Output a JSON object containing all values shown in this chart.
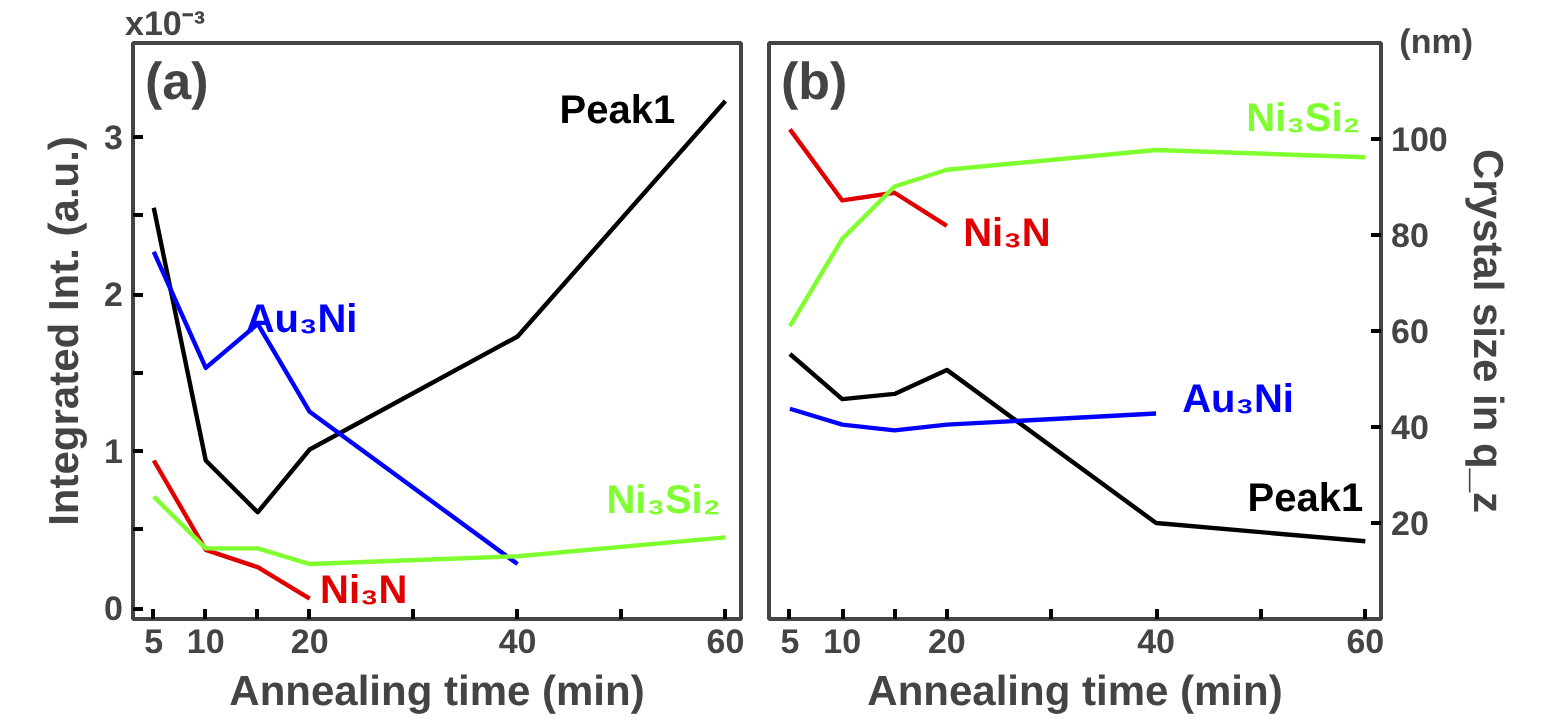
{
  "chart_data": [
    {
      "type": "line",
      "title": "(a)",
      "xlabel": "Annealing time (min)",
      "ylabel": "Integrated Int. (a.u.)",
      "grid": false,
      "x": [
        5,
        10,
        15,
        20,
        40,
        60
      ],
      "xlim": [
        3,
        61.5
      ],
      "xticks": [
        5,
        10,
        {
          "value": 15,
          "label": null
        },
        20,
        {
          "value": 30,
          "label": null
        },
        40,
        {
          "value": 50,
          "label": null
        },
        60
      ],
      "ylim": [
        -0.07,
        3.6
      ],
      "yticks": [
        0,
        {
          "value": 0.5,
          "label": null
        },
        1,
        {
          "value": 1.5,
          "label": null
        },
        2,
        {
          "value": 2.5,
          "label": null
        },
        3
      ],
      "series": [
        {
          "name": "Peak1",
          "color": "#000000",
          "values": [
            2.55,
            0.94,
            0.61,
            1.01,
            1.73,
            3.23
          ]
        },
        {
          "name": "Au₃Ni",
          "color": "#0000ff",
          "values": [
            2.27,
            1.53,
            1.81,
            1.25,
            0.28,
            null
          ]
        },
        {
          "name": "Ni₃N",
          "color": "#e00000",
          "values": [
            0.94,
            0.37,
            0.26,
            0.06,
            null,
            null
          ]
        },
        {
          "name": "Ni₃Si₂",
          "color": "#80ff30",
          "values": [
            0.71,
            0.38,
            0.38,
            0.28,
            0.33,
            0.45
          ]
        }
      ],
      "annotations": [
        "x10⁻³"
      ]
    },
    {
      "type": "line",
      "title": "(b)",
      "xlabel": "Annealing time (min)",
      "y2label": "Crystal size in q_z",
      "grid": false,
      "x": [
        5,
        10,
        15,
        20,
        40,
        60
      ],
      "xlim": [
        3,
        61.5
      ],
      "xticks": [
        5,
        10,
        {
          "value": 15,
          "label": null
        },
        20,
        {
          "value": 30,
          "label": null
        },
        40,
        {
          "value": 50,
          "label": null
        },
        60
      ],
      "y2lim": [
        0,
        120
      ],
      "y2ticks": [
        20,
        40,
        60,
        80,
        100
      ],
      "series": [
        {
          "name": "Peak1",
          "color": "#000000",
          "axis": "y2",
          "values": [
            55.2,
            45.8,
            46.9,
            51.9,
            20,
            16.2
          ]
        },
        {
          "name": "Au₃Ni",
          "color": "#0000ff",
          "axis": "y2",
          "values": [
            43.8,
            40.5,
            39.3,
            40.5,
            42.8,
            null
          ]
        },
        {
          "name": "Ni₃N",
          "color": "#e00000",
          "axis": "y2",
          "values": [
            102,
            87.2,
            88.8,
            81.9,
            null,
            null
          ]
        },
        {
          "name": "Ni₃Si₂",
          "color": "#80ff30",
          "axis": "y2",
          "values": [
            61,
            79.2,
            90.1,
            93.6,
            97.7,
            96.2
          ]
        }
      ],
      "annotations": [
        "(nm)"
      ]
    }
  ]
}
